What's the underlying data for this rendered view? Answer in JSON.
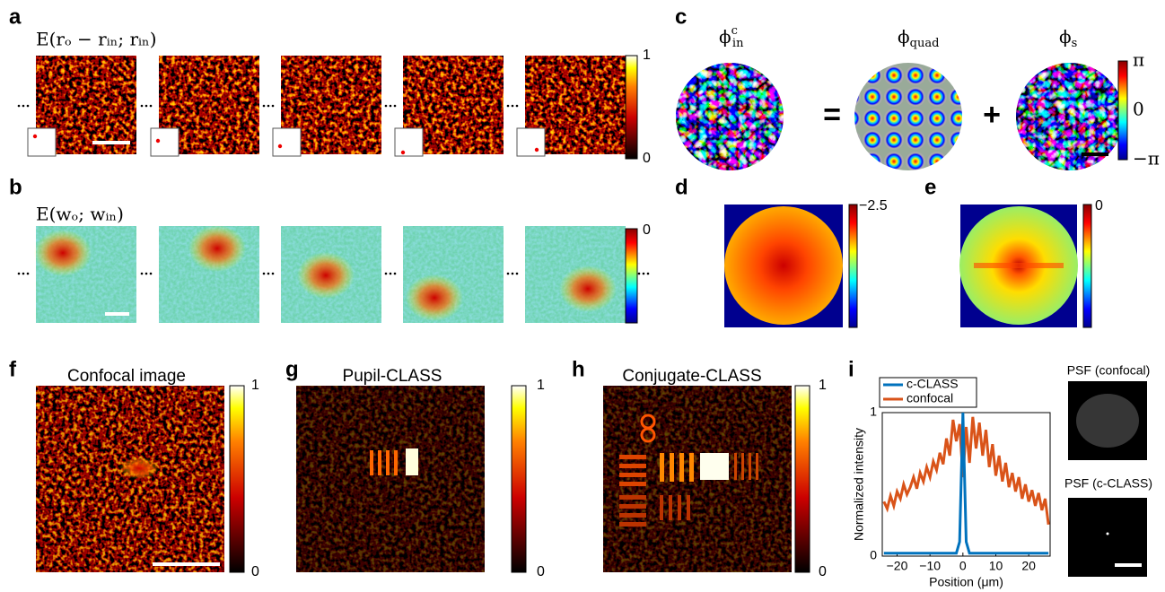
{
  "panels": {
    "a": {
      "label": "a",
      "title": "E(rₒ − rᵢₙ; rᵢₙ)",
      "colorbar_ticks": [
        "1",
        "0"
      ]
    },
    "b": {
      "label": "b",
      "title": "E(wₒ; wᵢₙ)",
      "colorbar_ticks": [
        "0"
      ]
    },
    "c": {
      "label": "c",
      "phases": [
        {
          "symbol": "ϕ",
          "sub": "in",
          "sup": "c"
        },
        {
          "symbol": "ϕ",
          "sub": "quad"
        },
        {
          "symbol": "ϕ",
          "sub": "s"
        }
      ],
      "operators": [
        "=",
        "+"
      ],
      "colorbar_ticks": [
        "π",
        "0",
        "−π"
      ]
    },
    "d": {
      "label": "d",
      "colorbar_ticks": [
        "−2.5"
      ]
    },
    "e": {
      "label": "e",
      "colorbar_ticks": [
        "0"
      ]
    },
    "f": {
      "label": "f",
      "title": "Confocal image",
      "colorbar_ticks": [
        "1",
        "0"
      ]
    },
    "g": {
      "label": "g",
      "title": "Pupil-CLASS",
      "colorbar_ticks": [
        "1",
        "0"
      ]
    },
    "h": {
      "label": "h",
      "title": "Conjugate-CLASS",
      "colorbar_ticks": [
        "1",
        "0"
      ]
    },
    "i": {
      "label": "i",
      "psf_titles": [
        "PSF (confocal)",
        "PSF (c-CLASS)"
      ]
    }
  },
  "chart_data": {
    "type": "line",
    "xlabel": "Position (μm)",
    "ylabel": "Normalized intensity",
    "x": [
      -24,
      -23,
      -22,
      -21,
      -20,
      -19,
      -18,
      -17,
      -16,
      -15,
      -14,
      -13,
      -12,
      -11,
      -10,
      -9,
      -8,
      -7,
      -6,
      -5,
      -4,
      -3,
      -2,
      -1,
      0,
      1,
      2,
      3,
      4,
      5,
      6,
      7,
      8,
      9,
      10,
      11,
      12,
      13,
      14,
      15,
      16,
      17,
      18,
      19,
      20,
      21,
      22,
      23,
      24,
      25,
      26
    ],
    "series": [
      {
        "name": "c-CLASS",
        "color": "#0072bd",
        "values": [
          0.02,
          0.02,
          0.02,
          0.02,
          0.02,
          0.02,
          0.02,
          0.02,
          0.02,
          0.02,
          0.02,
          0.02,
          0.02,
          0.02,
          0.02,
          0.02,
          0.02,
          0.02,
          0.02,
          0.02,
          0.02,
          0.02,
          0.02,
          0.1,
          1.0,
          0.1,
          0.02,
          0.02,
          0.02,
          0.02,
          0.02,
          0.02,
          0.02,
          0.02,
          0.02,
          0.02,
          0.02,
          0.02,
          0.02,
          0.02,
          0.02,
          0.02,
          0.02,
          0.02,
          0.02,
          0.02,
          0.02,
          0.02,
          0.02,
          0.02,
          0.02
        ]
      },
      {
        "name": "confocal",
        "color": "#d95319",
        "values": [
          0.38,
          0.33,
          0.42,
          0.35,
          0.45,
          0.4,
          0.5,
          0.43,
          0.48,
          0.55,
          0.47,
          0.58,
          0.52,
          0.62,
          0.55,
          0.66,
          0.6,
          0.72,
          0.64,
          0.82,
          0.7,
          0.95,
          0.8,
          0.92,
          0.55,
          0.9,
          0.65,
          0.97,
          0.75,
          0.93,
          0.7,
          0.88,
          0.62,
          0.78,
          0.56,
          0.7,
          0.52,
          0.65,
          0.48,
          0.58,
          0.45,
          0.55,
          0.4,
          0.5,
          0.38,
          0.46,
          0.35,
          0.44,
          0.32,
          0.4,
          0.22
        ]
      }
    ],
    "xlim": [
      -24.5,
      26.5
    ],
    "ylim": [
      0,
      1
    ],
    "xticks": [
      {
        "value": -20,
        "label": "−20"
      },
      {
        "value": -10,
        "label": "−10"
      },
      0,
      10,
      20
    ],
    "yticks": [
      0,
      1
    ],
    "legend": "top-left"
  }
}
